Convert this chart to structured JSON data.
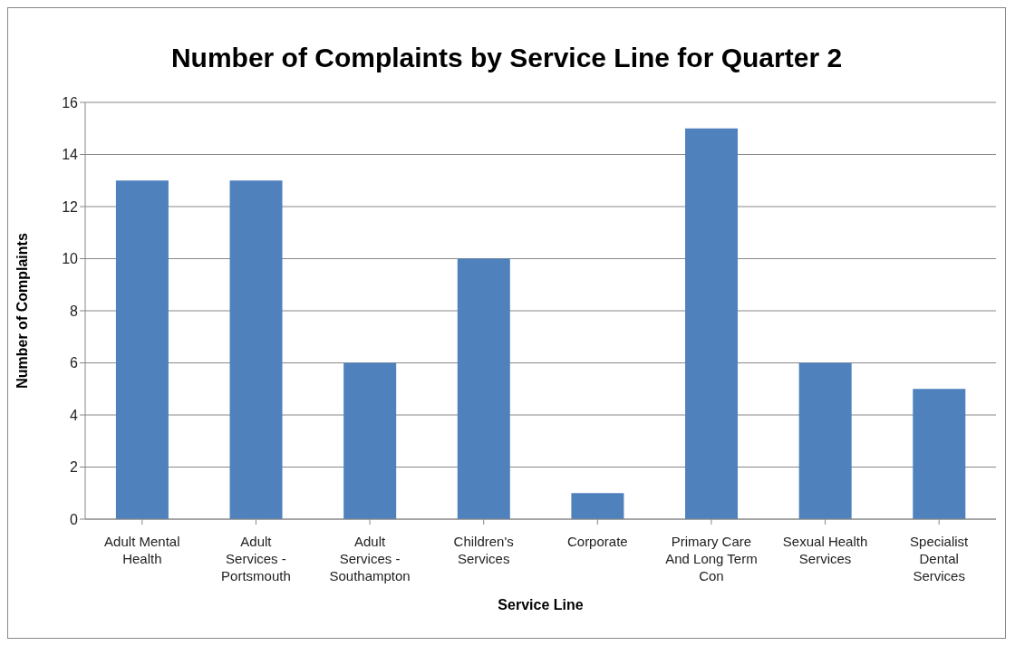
{
  "chart_data": {
    "type": "bar",
    "title": "Number of Complaints by Service Line for Quarter 2",
    "xlabel": "Service Line",
    "ylabel": "Number of Complaints",
    "categories": [
      "Adult Mental Health",
      "Adult Services - Portsmouth",
      "Adult Services - Southampton",
      "Children's Services",
      "Corporate",
      "Primary Care And Long Term Con",
      "Sexual Health Services",
      "Specialist Dental Services"
    ],
    "values": [
      13,
      13,
      6,
      10,
      1,
      15,
      6,
      5
    ],
    "color": "#4f81bd",
    "ylim": [
      0,
      16
    ],
    "yticks": [
      0,
      2,
      4,
      6,
      8,
      10,
      12,
      14,
      16
    ],
    "grid": "y"
  }
}
